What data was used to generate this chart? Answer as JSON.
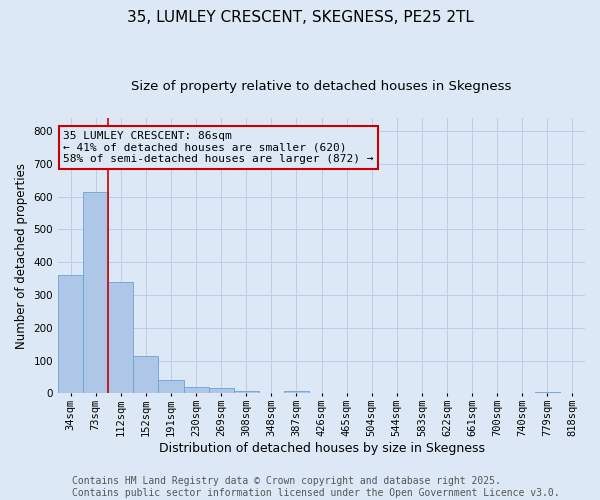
{
  "title": "35, LUMLEY CRESCENT, SKEGNESS, PE25 2TL",
  "subtitle": "Size of property relative to detached houses in Skegness",
  "xlabel": "Distribution of detached houses by size in Skegness",
  "ylabel": "Number of detached properties",
  "bar_color": "#aec6e8",
  "bar_edge_color": "#6aa3d4",
  "grid_color": "#b8cfe8",
  "background_color": "#dce8f5",
  "vline_color": "#cc0000",
  "vline_x": 1.5,
  "annotation_box_color": "#cc0000",
  "annotation_text": "35 LUMLEY CRESCENT: 86sqm\n← 41% of detached houses are smaller (620)\n58% of semi-detached houses are larger (872) →",
  "annotation_fontsize": 8,
  "categories": [
    "34sqm",
    "73sqm",
    "112sqm",
    "152sqm",
    "191sqm",
    "230sqm",
    "269sqm",
    "308sqm",
    "348sqm",
    "387sqm",
    "426sqm",
    "465sqm",
    "504sqm",
    "544sqm",
    "583sqm",
    "622sqm",
    "661sqm",
    "700sqm",
    "740sqm",
    "779sqm",
    "818sqm"
  ],
  "values": [
    360,
    615,
    340,
    115,
    42,
    20,
    16,
    8,
    0,
    6,
    0,
    0,
    0,
    0,
    0,
    0,
    0,
    0,
    0,
    5,
    0
  ],
  "ylim": [
    0,
    840
  ],
  "yticks": [
    0,
    100,
    200,
    300,
    400,
    500,
    600,
    700,
    800
  ],
  "figsize": [
    6.0,
    5.0
  ],
  "dpi": 100,
  "footer_text": "Contains HM Land Registry data © Crown copyright and database right 2025.\nContains public sector information licensed under the Open Government Licence v3.0.",
  "footer_fontsize": 7,
  "title_fontsize": 11,
  "subtitle_fontsize": 9.5,
  "xlabel_fontsize": 9,
  "ylabel_fontsize": 8.5,
  "tick_fontsize": 7.5
}
